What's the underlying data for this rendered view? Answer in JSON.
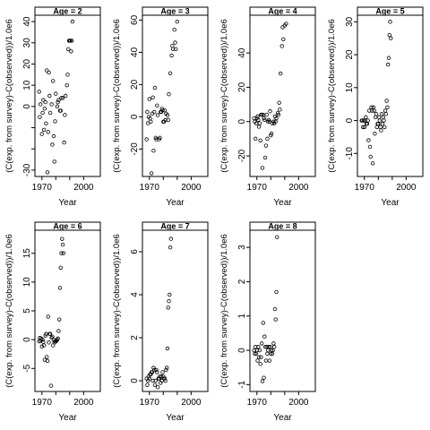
{
  "figure": {
    "background": "#ffffff",
    "ink": "#000000"
  },
  "chart_data": [
    {
      "type": "scatter",
      "title": "Age = 2",
      "xlabel": "Year",
      "ylabel": "(C(exp. from survey)-C(observed))/1.0e6",
      "xlim": [
        1965,
        2012
      ],
      "ylim": [
        -33,
        43
      ],
      "x_ticks": [
        1970,
        1980,
        1990,
        2000
      ],
      "x_tick_labels": [
        "1970",
        "",
        "",
        "2000"
      ],
      "y_ticks": [
        -30,
        -20,
        -10,
        0,
        10,
        20,
        30,
        40
      ],
      "y_tick_labels": [
        "-30",
        "",
        "",
        "0",
        "10",
        "20",
        "30",
        "40"
      ],
      "points": [
        [
          1968,
          7
        ],
        [
          1968.5,
          -5
        ],
        [
          1969,
          1
        ],
        [
          1970,
          -13
        ],
        [
          1970.5,
          -3
        ],
        [
          1971,
          3
        ],
        [
          1971.5,
          -11
        ],
        [
          1972,
          -1
        ],
        [
          1972.5,
          2
        ],
        [
          1973,
          -8
        ],
        [
          1973.5,
          17
        ],
        [
          1974,
          -31
        ],
        [
          1974.5,
          -12
        ],
        [
          1975,
          16
        ],
        [
          1975.5,
          5
        ],
        [
          1976,
          -3
        ],
        [
          1977,
          1
        ],
        [
          1977.5,
          -18
        ],
        [
          1978,
          12
        ],
        [
          1978.5,
          -14
        ],
        [
          1979,
          -26
        ],
        [
          1979.5,
          -7
        ],
        [
          1980,
          6
        ],
        [
          1981,
          0
        ],
        [
          1981.5,
          2
        ],
        [
          1982,
          3
        ],
        [
          1983,
          -2
        ],
        [
          1983.5,
          -2
        ],
        [
          1984,
          4
        ],
        [
          1985,
          4
        ],
        [
          1986,
          -17
        ],
        [
          1986.5,
          -4
        ],
        [
          1987,
          5
        ],
        [
          1988,
          10
        ],
        [
          1988.5,
          15
        ],
        [
          1989,
          27
        ],
        [
          1989.5,
          31
        ],
        [
          1990,
          31
        ],
        [
          1990.5,
          31
        ],
        [
          1991,
          26
        ],
        [
          1991.5,
          31
        ],
        [
          1992,
          40
        ]
      ]
    },
    {
      "type": "scatter",
      "title": "Age = 3",
      "xlabel": "Year",
      "ylabel": "(C(exp. from survey)-C(observed))/1.0e6",
      "xlim": [
        1965,
        2012
      ],
      "ylim": [
        -37,
        63
      ],
      "x_ticks": [
        1970,
        1980,
        1990,
        2000
      ],
      "x_tick_labels": [
        "1970",
        "",
        "",
        "2000"
      ],
      "y_ticks": [
        -20,
        0,
        20,
        40,
        60
      ],
      "y_tick_labels": [
        "-20",
        "0",
        "20",
        "40",
        "60"
      ],
      "points": [
        [
          1968,
          -14
        ],
        [
          1968.5,
          3
        ],
        [
          1969,
          -4
        ],
        [
          1969.5,
          0
        ],
        [
          1970,
          11
        ],
        [
          1970.5,
          -1
        ],
        [
          1971,
          -3
        ],
        [
          1971.5,
          -35
        ],
        [
          1972,
          2
        ],
        [
          1972.5,
          12
        ],
        [
          1973,
          -21
        ],
        [
          1973.5,
          3
        ],
        [
          1974,
          18
        ],
        [
          1974.5,
          -13
        ],
        [
          1975,
          -14
        ],
        [
          1975.5,
          7
        ],
        [
          1976,
          1
        ],
        [
          1977,
          -14
        ],
        [
          1977.5,
          -13
        ],
        [
          1978,
          3
        ],
        [
          1978.5,
          3
        ],
        [
          1979,
          5
        ],
        [
          1979.5,
          4
        ],
        [
          1980,
          -3
        ],
        [
          1980.5,
          -3
        ],
        [
          1981,
          4
        ],
        [
          1981.5,
          -2
        ],
        [
          1982,
          2
        ],
        [
          1983,
          1
        ],
        [
          1983.5,
          -2
        ],
        [
          1984,
          14
        ],
        [
          1985,
          27
        ],
        [
          1986,
          38
        ],
        [
          1986.5,
          44
        ],
        [
          1987,
          42
        ],
        [
          1988,
          54
        ],
        [
          1988.5,
          46
        ],
        [
          1989,
          42
        ],
        [
          1990,
          59
        ]
      ]
    },
    {
      "type": "scatter",
      "title": "Age = 4",
      "xlabel": "Year",
      "ylabel": "(C(exp. from survey)-C(observed))/1.0e6",
      "xlim": [
        1965,
        2012
      ],
      "ylim": [
        -32,
        62
      ],
      "x_ticks": [
        1970,
        1980,
        1990,
        2000
      ],
      "x_tick_labels": [
        "1970",
        "",
        "",
        "2000"
      ],
      "y_ticks": [
        -20,
        0,
        20,
        40
      ],
      "y_tick_labels": [
        "-20",
        "0",
        "20",
        "40"
      ],
      "points": [
        [
          1968,
          2
        ],
        [
          1968.5,
          0
        ],
        [
          1969,
          -10
        ],
        [
          1969.5,
          -1
        ],
        [
          1970,
          2
        ],
        [
          1970.5,
          3
        ],
        [
          1971,
          1
        ],
        [
          1971.5,
          -3
        ],
        [
          1972,
          -1
        ],
        [
          1972.5,
          -11
        ],
        [
          1973,
          4
        ],
        [
          1973.5,
          4
        ],
        [
          1974,
          -27
        ],
        [
          1974.5,
          4
        ],
        [
          1975,
          2
        ],
        [
          1975.5,
          1
        ],
        [
          1976,
          -21
        ],
        [
          1976.5,
          -14
        ],
        [
          1977,
          4
        ],
        [
          1977.5,
          -10
        ],
        [
          1978,
          0
        ],
        [
          1978.5,
          1
        ],
        [
          1979,
          0
        ],
        [
          1979.5,
          6
        ],
        [
          1980,
          -8
        ],
        [
          1980.5,
          -7
        ],
        [
          1981,
          -1
        ],
        [
          1982,
          0
        ],
        [
          1982.5,
          -1
        ],
        [
          1983,
          3
        ],
        [
          1983.5,
          0
        ],
        [
          1984,
          2
        ],
        [
          1985,
          5
        ],
        [
          1985.5,
          4
        ],
        [
          1986,
          11
        ],
        [
          1986.5,
          7
        ],
        [
          1987,
          28
        ],
        [
          1988,
          44
        ],
        [
          1988.5,
          55
        ],
        [
          1989,
          48
        ],
        [
          1990,
          56
        ],
        [
          1991,
          57
        ]
      ]
    },
    {
      "type": "scatter",
      "title": "Age = 5",
      "xlabel": "Year",
      "ylabel": "(C(exp. from survey)-C(observed))/1.0e6",
      "xlim": [
        1965,
        2012
      ],
      "ylim": [
        -17,
        32
      ],
      "x_ticks": [
        1970,
        1980,
        1990,
        2000
      ],
      "x_tick_labels": [
        "1970",
        "",
        "",
        "2000"
      ],
      "y_ticks": [
        -10,
        0,
        10,
        20,
        30
      ],
      "y_tick_labels": [
        "-10",
        "0",
        "10",
        "20",
        "30"
      ],
      "points": [
        [
          1968,
          0
        ],
        [
          1968.5,
          0
        ],
        [
          1969,
          -2
        ],
        [
          1969.5,
          0
        ],
        [
          1970,
          -2
        ],
        [
          1970.5,
          0
        ],
        [
          1971,
          1
        ],
        [
          1971.5,
          -1
        ],
        [
          1972,
          -1
        ],
        [
          1972.5,
          0
        ],
        [
          1973,
          -6
        ],
        [
          1973.5,
          3
        ],
        [
          1974,
          -8
        ],
        [
          1974.5,
          -11
        ],
        [
          1975,
          4
        ],
        [
          1975.5,
          3
        ],
        [
          1976,
          -13
        ],
        [
          1976.5,
          4
        ],
        [
          1977,
          3
        ],
        [
          1977.5,
          -4
        ],
        [
          1978,
          1
        ],
        [
          1978.5,
          2
        ],
        [
          1979,
          -2
        ],
        [
          1979.5,
          -1
        ],
        [
          1980,
          -1
        ],
        [
          1980.5,
          1
        ],
        [
          1981,
          0
        ],
        [
          1981.5,
          -2
        ],
        [
          1982,
          -3
        ],
        [
          1982.5,
          2
        ],
        [
          1983,
          -1
        ],
        [
          1983.5,
          1
        ],
        [
          1984,
          0
        ],
        [
          1984.5,
          -2
        ],
        [
          1985,
          3
        ],
        [
          1985.5,
          2
        ],
        [
          1986,
          6
        ],
        [
          1986.5,
          4
        ],
        [
          1987,
          17
        ],
        [
          1987.5,
          19
        ],
        [
          1988,
          26
        ],
        [
          1988.5,
          30
        ],
        [
          1989,
          25
        ]
      ]
    },
    {
      "type": "scatter",
      "title": "Age = 6",
      "xlabel": "Year",
      "ylabel": "(C(exp. from survey)-C(observed))/1.0e6",
      "xlim": [
        1965,
        2012
      ],
      "ylim": [
        -9,
        19
      ],
      "x_ticks": [
        1970,
        1980,
        1990,
        2000
      ],
      "x_tick_labels": [
        "1970",
        "",
        "",
        "2000"
      ],
      "y_ticks": [
        -5,
        0,
        5,
        10,
        15
      ],
      "y_tick_labels": [
        "-5",
        "0",
        "5",
        "10",
        "15"
      ],
      "points": [
        [
          1968,
          -0.3
        ],
        [
          1968.5,
          0.3
        ],
        [
          1969,
          -0.2
        ],
        [
          1969.5,
          0.2
        ],
        [
          1970,
          -1.2
        ],
        [
          1970.5,
          0
        ],
        [
          1971,
          -0.4
        ],
        [
          1971.5,
          -1
        ],
        [
          1972,
          -3.5
        ],
        [
          1972.5,
          0.7
        ],
        [
          1973,
          1
        ],
        [
          1973.5,
          -3
        ],
        [
          1974,
          -3.7
        ],
        [
          1974.5,
          4
        ],
        [
          1975,
          -0.5
        ],
        [
          1975.5,
          1
        ],
        [
          1976,
          1
        ],
        [
          1976.5,
          -8
        ],
        [
          1977,
          0.3
        ],
        [
          1977.5,
          0.5
        ],
        [
          1978,
          -1
        ],
        [
          1978.5,
          0
        ],
        [
          1979,
          -0.5
        ],
        [
          1979.5,
          -0.3
        ],
        [
          1980,
          -0.3
        ],
        [
          1980.5,
          -0.2
        ],
        [
          1981,
          0
        ],
        [
          1981.5,
          0.2
        ],
        [
          1982,
          1.5
        ],
        [
          1982.5,
          3.5
        ],
        [
          1983,
          9
        ],
        [
          1983.5,
          12.5
        ],
        [
          1984,
          15
        ],
        [
          1984.5,
          17.5
        ],
        [
          1985,
          16.5
        ],
        [
          1985.5,
          15
        ]
      ]
    },
    {
      "type": "scatter",
      "title": "Age = 7",
      "xlabel": "Year",
      "ylabel": "(C(exp. from survey)-C(observed))/1.0e6",
      "xlim": [
        1965,
        2012
      ],
      "ylim": [
        -0.5,
        7
      ],
      "x_ticks": [
        1970,
        1980,
        1990,
        2000
      ],
      "x_tick_labels": [
        "1970",
        "",
        "",
        "2000"
      ],
      "y_ticks": [
        0,
        2,
        4,
        6
      ],
      "y_tick_labels": [
        "0",
        "2",
        "4",
        "6"
      ],
      "points": [
        [
          1968,
          0.1
        ],
        [
          1968.5,
          -0.2
        ],
        [
          1969,
          0
        ],
        [
          1969.5,
          0.2
        ],
        [
          1970,
          0.1
        ],
        [
          1970.5,
          0.3
        ],
        [
          1971,
          0.3
        ],
        [
          1971.5,
          0.4
        ],
        [
          1972,
          0.4
        ],
        [
          1972.5,
          0
        ],
        [
          1973,
          0.6
        ],
        [
          1973.5,
          0.5
        ],
        [
          1974,
          -0.2
        ],
        [
          1974.5,
          0
        ],
        [
          1975,
          0.5
        ],
        [
          1975.5,
          0.4
        ],
        [
          1976,
          -0.3
        ],
        [
          1976.5,
          0.1
        ],
        [
          1977,
          0.1
        ],
        [
          1977.5,
          0.2
        ],
        [
          1978,
          -0.1
        ],
        [
          1978.5,
          0.2
        ],
        [
          1979,
          0
        ],
        [
          1979.5,
          0.4
        ],
        [
          1980,
          0.2
        ],
        [
          1980.5,
          0.1
        ],
        [
          1981,
          0.1
        ],
        [
          1981.5,
          0
        ],
        [
          1982,
          0.5
        ],
        [
          1982.5,
          0.6
        ],
        [
          1983,
          1.5
        ],
        [
          1983.5,
          3.4
        ],
        [
          1984,
          3.7
        ],
        [
          1984.5,
          4
        ],
        [
          1985,
          6.2
        ],
        [
          1985.5,
          6.6
        ]
      ]
    },
    {
      "type": "scatter",
      "title": "Age = 8",
      "xlabel": "Year",
      "ylabel": "(C(exp. from survey)-C(observed))/1.0e6",
      "xlim": [
        1965,
        2012
      ],
      "ylim": [
        -1.2,
        3.5
      ],
      "x_ticks": [
        1970,
        1980,
        1990,
        2000
      ],
      "x_tick_labels": [
        "1970",
        "",
        "",
        "2000"
      ],
      "y_ticks": [
        -1,
        0,
        1,
        2,
        3
      ],
      "y_tick_labels": [
        "-1",
        "0",
        "1",
        "2",
        "3"
      ],
      "points": [
        [
          1968,
          0
        ],
        [
          1968.5,
          -0.1
        ],
        [
          1969,
          0.1
        ],
        [
          1969.5,
          -0.1
        ],
        [
          1970,
          0
        ],
        [
          1970.5,
          -0.3
        ],
        [
          1971,
          0.1
        ],
        [
          1971.5,
          -0.2
        ],
        [
          1972,
          0
        ],
        [
          1972.5,
          -0.4
        ],
        [
          1973,
          -0.2
        ],
        [
          1973.5,
          0.2
        ],
        [
          1974,
          -0.9
        ],
        [
          1974.5,
          0.8
        ],
        [
          1975,
          -0.8
        ],
        [
          1975.5,
          0.4
        ],
        [
          1976,
          0.1
        ],
        [
          1976.5,
          -0.3
        ],
        [
          1977,
          0.1
        ],
        [
          1977.5,
          -0.1
        ],
        [
          1978,
          0
        ],
        [
          1978.5,
          0.1
        ],
        [
          1979,
          -0.3
        ],
        [
          1979.5,
          0.1
        ],
        [
          1980,
          -0.1
        ],
        [
          1980.5,
          0
        ],
        [
          1981,
          -0.1
        ],
        [
          1981.5,
          0
        ],
        [
          1982,
          0.2
        ],
        [
          1982.5,
          0.1
        ],
        [
          1983,
          1.2
        ],
        [
          1983.5,
          0.9
        ],
        [
          1984,
          1.7
        ],
        [
          1984.5,
          3.3
        ]
      ]
    }
  ]
}
